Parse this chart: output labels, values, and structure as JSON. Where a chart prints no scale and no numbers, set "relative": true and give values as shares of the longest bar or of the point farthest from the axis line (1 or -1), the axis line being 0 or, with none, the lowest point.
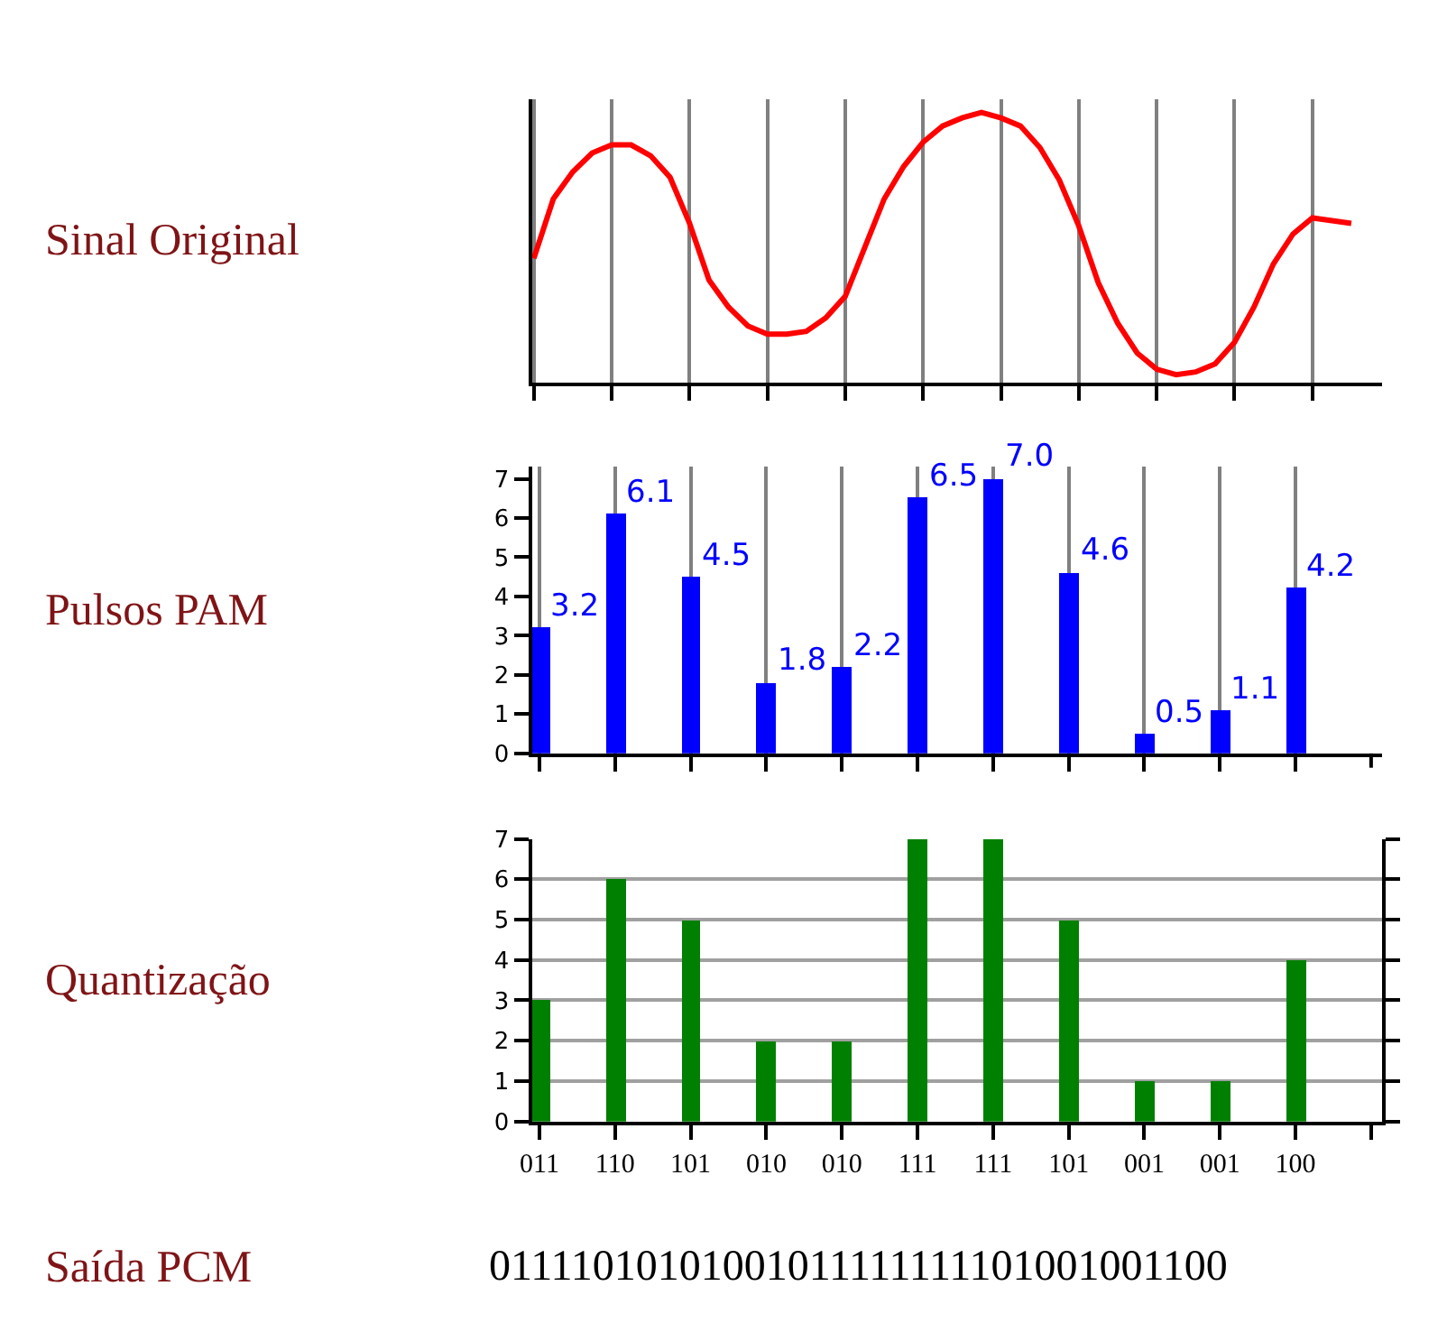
{
  "chart_data": [
    {
      "type": "line",
      "ylabel": "Sinal Original",
      "relative": true,
      "color": "#ff0000",
      "line_style": "solid",
      "marker": "none",
      "grid": "x",
      "categories": [
        null,
        null,
        null,
        null,
        null,
        null,
        null,
        null,
        null,
        null,
        null,
        null,
        null,
        null,
        null,
        null,
        null,
        null,
        null,
        null,
        null,
        null,
        null,
        null,
        null,
        null,
        null,
        null,
        null,
        null,
        null,
        null,
        null,
        null,
        null,
        null,
        null,
        null,
        null,
        null,
        null,
        null,
        null
      ],
      "values": [
        0.46,
        0.68,
        0.78,
        0.85,
        0.88,
        0.88,
        0.84,
        0.76,
        0.59,
        0.38,
        0.28,
        0.21,
        0.18,
        0.18,
        0.19,
        0.24,
        0.32,
        0.5,
        0.68,
        0.8,
        0.89,
        0.95,
        0.98,
        1.0,
        0.98,
        0.95,
        0.87,
        0.75,
        0.58,
        0.37,
        0.22,
        0.11,
        0.05,
        0.03,
        0.04,
        0.07,
        0.15,
        0.28,
        0.44,
        0.55,
        0.61,
        0.6,
        0.59
      ]
    },
    {
      "type": "bar",
      "ylabel": "Pulsos PAM",
      "color": "#0000ff",
      "grid": "x",
      "categories": [
        null,
        null,
        null,
        null,
        null,
        null,
        null,
        null,
        null,
        null,
        null
      ],
      "values": [
        3.2,
        6.1,
        4.5,
        1.8,
        2.2,
        6.5,
        7.0,
        4.6,
        0.5,
        1.1,
        4.2
      ],
      "value_labels": [
        "3.2",
        "6.1",
        "4.5",
        "1.8",
        "2.2",
        "6.5",
        "7.0",
        "4.6",
        "0.5",
        "1.1",
        "4.2"
      ],
      "ylim": [
        0,
        7.3
      ],
      "yticks": [
        0,
        1,
        2,
        3,
        4,
        5,
        6,
        7
      ]
    },
    {
      "type": "bar",
      "ylabel": "Quantização",
      "color": "#008000",
      "grid": "y",
      "categories": [
        "011",
        "110",
        "101",
        "010",
        "010",
        "111",
        "111",
        "101",
        "001",
        "001",
        "100"
      ],
      "values": [
        3,
        6,
        5,
        2,
        2,
        7,
        7,
        5,
        1,
        1,
        4
      ],
      "ylim": [
        0,
        7
      ],
      "yticks": [
        0,
        1,
        2,
        3,
        4,
        5,
        6,
        7
      ],
      "annotations": [
        "Saída PCM",
        "01111010101001011111111101001001100"
      ]
    }
  ]
}
